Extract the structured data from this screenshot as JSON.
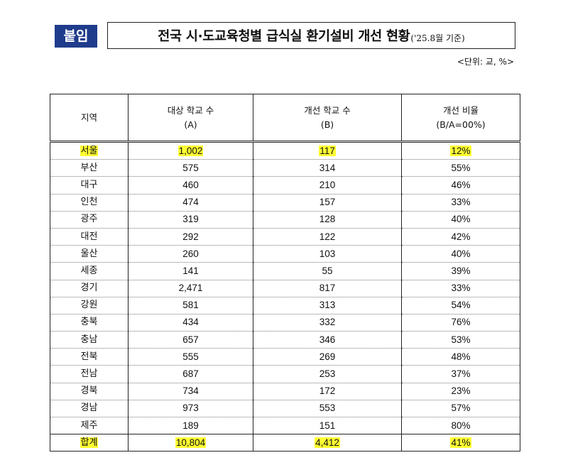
{
  "tag_label": "붙임",
  "title": "전국 시·도교육청별 급식실 환기설비 개선 현황",
  "title_note": "('25.8월 기준)",
  "unit": "<단위: 교, %>",
  "headers": {
    "region": "지역",
    "target_line1": "대상 학교 수",
    "target_line2": "(A)",
    "improved_line1": "개선 학교 수",
    "improved_line2": "(B)",
    "ratio_line1": "개선 비율",
    "ratio_line2": "(B/A=00%)"
  },
  "highlight_color": "#ffff33",
  "rows": [
    {
      "region": "서울",
      "target": "1,002",
      "improved": "117",
      "ratio": "12%"
    },
    {
      "region": "부산",
      "target": "575",
      "improved": "314",
      "ratio": "55%"
    },
    {
      "region": "대구",
      "target": "460",
      "improved": "210",
      "ratio": "46%"
    },
    {
      "region": "인천",
      "target": "474",
      "improved": "157",
      "ratio": "33%"
    },
    {
      "region": "광주",
      "target": "319",
      "improved": "128",
      "ratio": "40%"
    },
    {
      "region": "대전",
      "target": "292",
      "improved": "122",
      "ratio": "42%"
    },
    {
      "region": "울산",
      "target": "260",
      "improved": "103",
      "ratio": "40%"
    },
    {
      "region": "세종",
      "target": "141",
      "improved": "55",
      "ratio": "39%"
    },
    {
      "region": "경기",
      "target": "2,471",
      "improved": "817",
      "ratio": "33%"
    },
    {
      "region": "강원",
      "target": "581",
      "improved": "313",
      "ratio": "54%"
    },
    {
      "region": "충북",
      "target": "434",
      "improved": "332",
      "ratio": "76%"
    },
    {
      "region": "충남",
      "target": "657",
      "improved": "346",
      "ratio": "53%"
    },
    {
      "region": "전북",
      "target": "555",
      "improved": "269",
      "ratio": "48%"
    },
    {
      "region": "전남",
      "target": "687",
      "improved": "253",
      "ratio": "37%"
    },
    {
      "region": "경북",
      "target": "734",
      "improved": "172",
      "ratio": "23%"
    },
    {
      "region": "경남",
      "target": "973",
      "improved": "553",
      "ratio": "57%"
    },
    {
      "region": "제주",
      "target": "189",
      "improved": "151",
      "ratio": "80%"
    }
  ],
  "total": {
    "region": "합계",
    "target": "10,804",
    "improved": "4,412",
    "ratio": "41%"
  }
}
